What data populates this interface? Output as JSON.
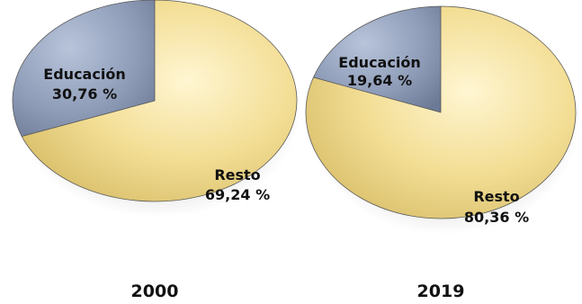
{
  "chart_data": [
    {
      "type": "pie",
      "year": "2000",
      "slices": [
        {
          "category": "Educación",
          "label": "30,76 %",
          "value": 30.76,
          "color": "#8e9cb8"
        },
        {
          "category": "Resto",
          "label": "69,24 %",
          "value": 69.24,
          "color": "#f2dc8e"
        }
      ]
    },
    {
      "type": "pie",
      "year": "2019",
      "slices": [
        {
          "category": "Educación",
          "label": "19,64 %",
          "value": 19.64,
          "color": "#8e9cb8"
        },
        {
          "category": "Resto",
          "label": "80,36 %",
          "value": 80.36,
          "color": "#f2dc8e"
        }
      ]
    }
  ]
}
